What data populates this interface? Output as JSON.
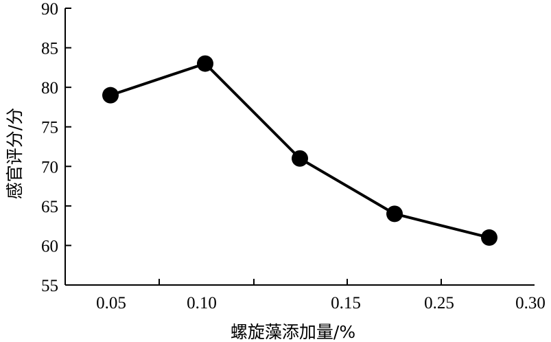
{
  "chart_data": {
    "type": "line",
    "xlabel": "螺旋藻添加量/%",
    "ylabel": "感官评分/分",
    "categories": [
      "0.05",
      "0.10",
      "",
      "0.15",
      "0.25",
      "0.30"
    ],
    "x_tick_labels": [
      "0.05",
      "0.10",
      "0.15",
      "0.25",
      "0.30"
    ],
    "y_ticks": [
      55,
      60,
      65,
      70,
      75,
      80,
      85,
      90
    ],
    "ylim": [
      55,
      90
    ],
    "grid": false,
    "series": [
      {
        "points": [
          {
            "x": "0.05",
            "y": 79
          },
          {
            "x": "0.10",
            "y": 83
          },
          {
            "x": "",
            "y": 71
          },
          {
            "x": "0.15",
            "y": 64
          },
          {
            "x": "0.25",
            "y": 61
          }
        ]
      }
    ]
  }
}
